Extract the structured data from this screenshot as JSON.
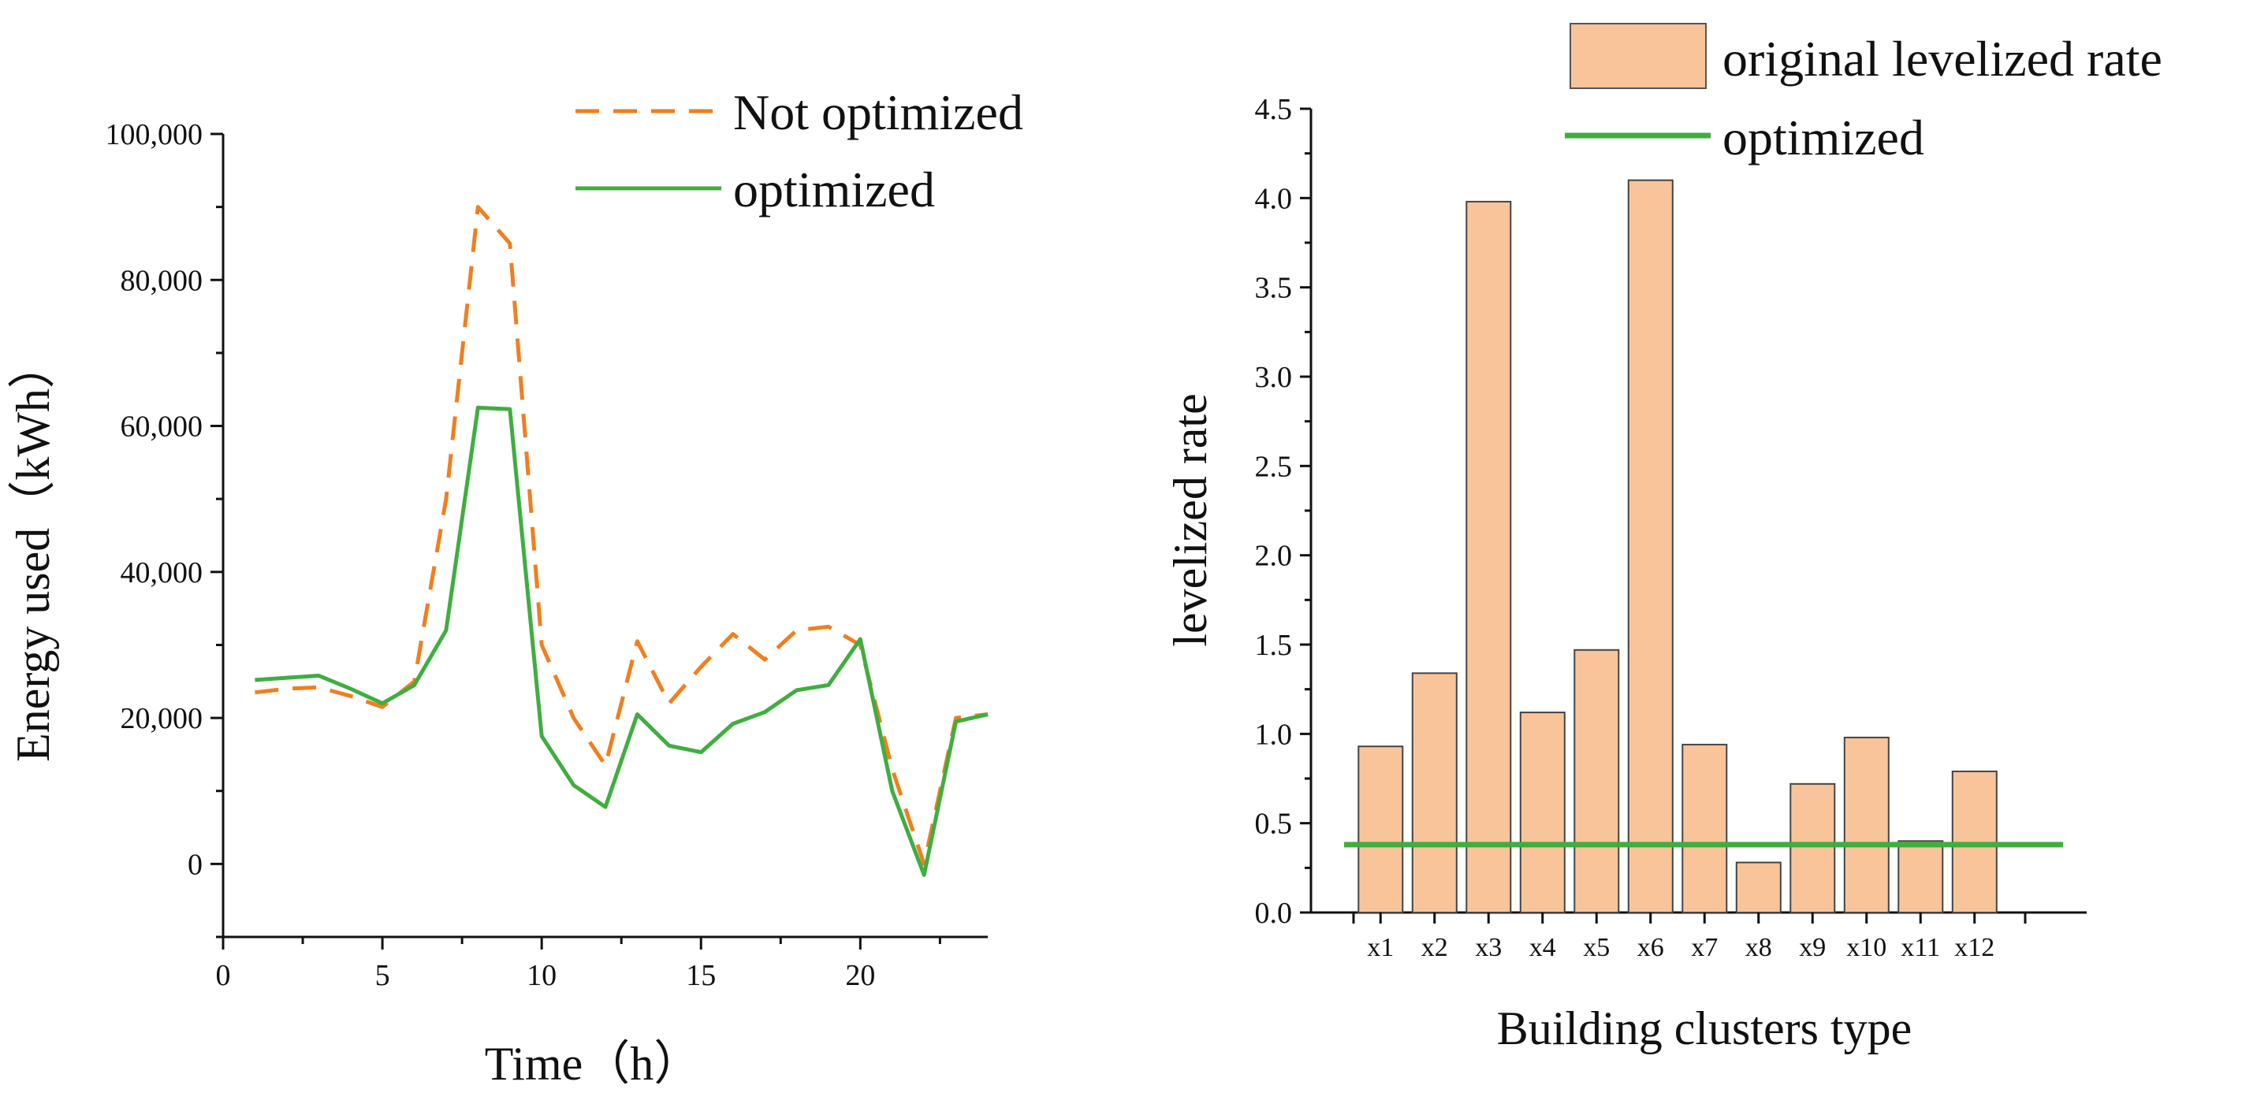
{
  "chart_data": [
    {
      "type": "line",
      "xlabel": "Time（h）",
      "ylabel": "Energy used（kWh）",
      "xlim": [
        0,
        24
      ],
      "ylim": [
        -10000,
        100000
      ],
      "x_ticks": [
        0,
        5,
        10,
        15,
        20
      ],
      "x_tick_labels": [
        "0",
        "5",
        "10",
        "15",
        "20"
      ],
      "y_ticks": [
        0,
        20000,
        40000,
        60000,
        80000,
        100000
      ],
      "y_tick_labels": [
        "0",
        "20,000",
        "40,000",
        "60,000",
        "80,000",
        "100,000"
      ],
      "legend_position": "top-right",
      "series": [
        {
          "name": "Not optimized",
          "color": "#f07f1e",
          "style": "dashed",
          "x": [
            1,
            2,
            3,
            4,
            5,
            6,
            7,
            8,
            9,
            10,
            11,
            12,
            13,
            14,
            15,
            16,
            17,
            18,
            19,
            20,
            21,
            22,
            23,
            24
          ],
          "values": [
            23500,
            24000,
            24200,
            23000,
            21500,
            25000,
            50000,
            90000,
            85000,
            30000,
            20000,
            13500,
            30500,
            22000,
            27000,
            31500,
            28000,
            32000,
            32500,
            30000,
            13000,
            0,
            20000,
            20500
          ]
        },
        {
          "name": "optimized",
          "color": "#3fae3f",
          "style": "solid",
          "x": [
            1,
            2,
            3,
            4,
            5,
            6,
            7,
            8,
            9,
            10,
            11,
            12,
            13,
            14,
            15,
            16,
            17,
            18,
            19,
            20,
            21,
            22,
            23,
            24
          ],
          "values": [
            25200,
            25500,
            25800,
            24000,
            22000,
            24500,
            32000,
            62500,
            62300,
            17500,
            10800,
            7800,
            20500,
            16200,
            15300,
            19200,
            20800,
            23800,
            24500,
            30800,
            10000,
            -1500,
            19500,
            20500
          ]
        }
      ]
    },
    {
      "type": "bar",
      "xlabel": "Building clusters type",
      "ylabel": "levelized rate",
      "ylim": [
        0,
        4.5
      ],
      "y_ticks": [
        0,
        0.5,
        1,
        1.5,
        2,
        2.5,
        3,
        3.5,
        4,
        4.5
      ],
      "y_tick_labels": [
        "0.0",
        "0.5",
        "1.0",
        "1.5",
        "2.0",
        "2.5",
        "3.0",
        "3.5",
        "4.0",
        "4.5"
      ],
      "categories": [
        "x1",
        "x2",
        "x3",
        "x4",
        "x5",
        "x6",
        "x7",
        "x8",
        "x9",
        "x10",
        "x11",
        "x12"
      ],
      "legend_position": "top-right",
      "series": [
        {
          "name": "original levelized rate",
          "color": "#f9c49a",
          "values": [
            0.93,
            1.34,
            3.98,
            1.12,
            1.47,
            4.1,
            0.94,
            0.28,
            0.72,
            0.98,
            0.4,
            0.79
          ]
        }
      ],
      "reference_line": {
        "name": "optimized",
        "color": "#3fae3f",
        "value": 0.38
      }
    }
  ]
}
